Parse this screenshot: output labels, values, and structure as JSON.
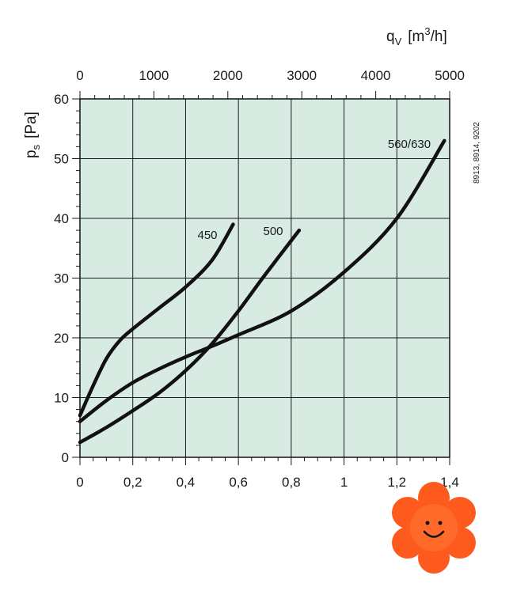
{
  "chart_data": {
    "type": "line",
    "y_axis_label_main": "p",
    "y_axis_label_sub": "s",
    "y_axis_label_unit": "[Pa]",
    "top_axis_label_main": "q",
    "top_axis_label_sub": "V",
    "top_axis_label_unit_pre": "[m",
    "top_axis_label_unit_sup": "3",
    "top_axis_label_unit_post": "/h]",
    "ylim": [
      0,
      60
    ],
    "xlim": [
      0,
      1.4
    ],
    "top_xlim": [
      0,
      5000
    ],
    "y_ticks": [
      "0",
      "10",
      "20",
      "30",
      "40",
      "50",
      "60"
    ],
    "x_ticks": [
      "0",
      "0,2",
      "0,4",
      "0,6",
      "0,8",
      "1",
      "1,2",
      "1,4"
    ],
    "top_x_ticks": [
      "0",
      "1000",
      "2000",
      "3000",
      "4000",
      "5000"
    ],
    "grid": true,
    "plot_background": "#d8ebe3",
    "line_color": "#111111",
    "side_note": "8913, 8914, 9202",
    "series": [
      {
        "name": "450",
        "x": [
          0,
          0.05,
          0.1,
          0.15,
          0.2,
          0.3,
          0.4,
          0.5,
          0.58
        ],
        "y": [
          7,
          12,
          16.5,
          19.5,
          21.5,
          25,
          28.5,
          33,
          39
        ]
      },
      {
        "name": "500",
        "x": [
          0,
          0.1,
          0.2,
          0.3,
          0.4,
          0.5,
          0.6,
          0.7,
          0.83
        ],
        "y": [
          2.5,
          5,
          7.8,
          10.8,
          14.5,
          19,
          24.5,
          30.5,
          38
        ]
      },
      {
        "name": "560/630",
        "x": [
          0,
          0.1,
          0.2,
          0.3,
          0.4,
          0.5,
          0.6,
          0.8,
          1.0,
          1.2,
          1.38
        ],
        "y": [
          6,
          9.5,
          12.5,
          14.8,
          16.8,
          18.6,
          20.5,
          24.5,
          31,
          40,
          53
        ]
      }
    ]
  },
  "decoration": {
    "flower_icon": "smiling-flower-icon",
    "flower_color": "#ff5a1e"
  }
}
